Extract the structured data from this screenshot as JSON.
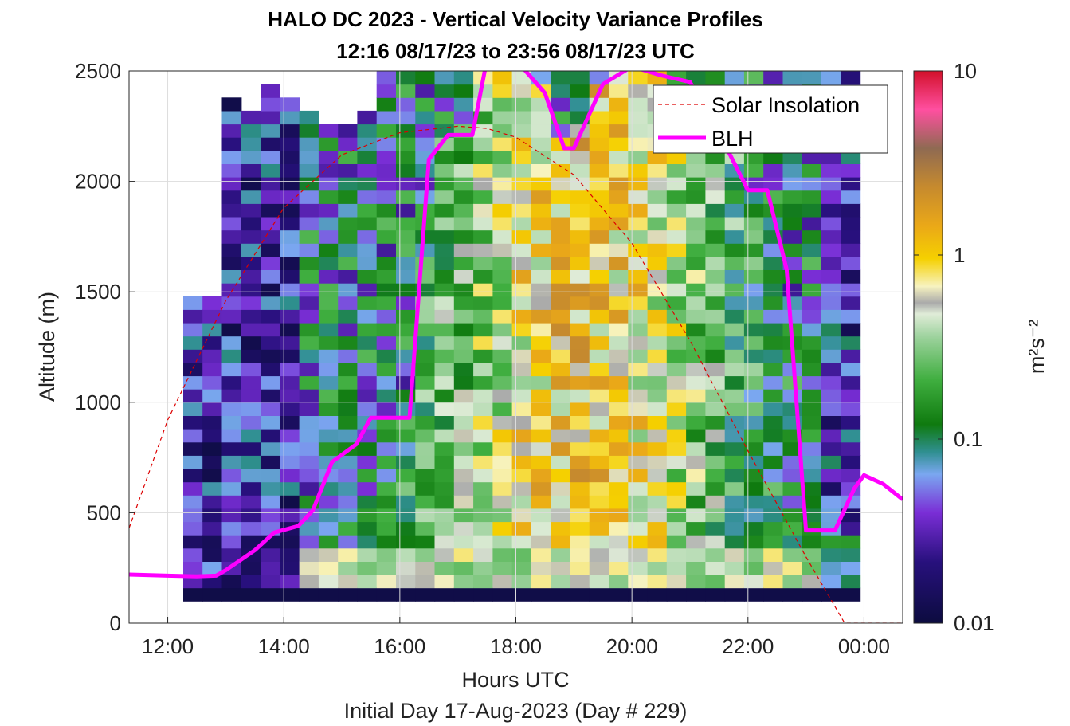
{
  "title_line1": "HALO DC 2023 - Vertical Velocity Variance Profiles",
  "title_line2": "12:16 08/17/23 to 23:56 08/17/23  UTC",
  "colorbar": {
    "label": "m²s⁻²",
    "ticks": [
      "10",
      "1",
      "0.1",
      "0.01"
    ],
    "scale": "log",
    "range": [
      0.01,
      10
    ]
  },
  "chart_data": {
    "type": "heatmap",
    "title": "HALO DC 2023 - Vertical Velocity Variance Profiles",
    "subtitle": "12:16 08/17/23 to 23:56 08/17/23  UTC",
    "xlabel": "Hours UTC",
    "ylabel": "Altitude (m)",
    "footer": "Initial Day 17-Aug-2023 (Day # 229)",
    "xlim": [
      "11:20",
      "00:40"
    ],
    "ylim": [
      0,
      2500
    ],
    "x_tick_labels": [
      "12:00",
      "14:00",
      "16:00",
      "18:00",
      "20:00",
      "22:00",
      "00:00"
    ],
    "y_tick_labels": [
      "0",
      "500",
      "1000",
      "1500",
      "2000",
      "2500"
    ],
    "grid": true,
    "legend_position": "top-right",
    "series": [
      {
        "name": "Solar Insolation",
        "style": "dashed",
        "color": "#dd0000",
        "x": [
          "11:20",
          "12:00",
          "13:00",
          "14:00",
          "15:00",
          "16:00",
          "17:00",
          "17:30",
          "18:00",
          "19:00",
          "20:00",
          "21:00",
          "22:00",
          "23:00",
          "23:40",
          "00:00",
          "00:40"
        ],
        "y": [
          430,
          920,
          1460,
          1880,
          2120,
          2220,
          2250,
          2240,
          2200,
          2030,
          1720,
          1280,
          780,
          300,
          0,
          0,
          0
        ]
      },
      {
        "name": "BLH",
        "style": "solid",
        "color": "#ff00ff",
        "x": [
          "11:20",
          "12:00",
          "12:30",
          "12:50",
          "13:00",
          "13:30",
          "13:50",
          "14:15",
          "14:30",
          "14:50",
          "15:15",
          "15:30",
          "16:00",
          "16:10",
          "16:30",
          "16:50",
          "17:15",
          "17:30",
          "18:00",
          "18:30",
          "18:50",
          "19:00",
          "19:30",
          "20:00",
          "20:30",
          "21:00",
          "21:30",
          "22:00",
          "22:20",
          "22:40",
          "23:00",
          "23:15",
          "23:30",
          "23:50",
          "00:00",
          "00:20",
          "00:40"
        ],
        "y": [
          220,
          215,
          212,
          215,
          240,
          330,
          410,
          440,
          510,
          730,
          810,
          930,
          930,
          930,
          2100,
          2210,
          2210,
          2550,
          2550,
          2400,
          2150,
          2150,
          2440,
          2520,
          2480,
          2450,
          2220,
          1960,
          1960,
          1600,
          420,
          420,
          420,
          610,
          670,
          630,
          560
        ]
      }
    ],
    "heatmap": {
      "x_start": "12:16",
      "x_end": "23:56",
      "time_step_minutes": 20,
      "altitude_step_m": 60,
      "value_units": "m^2 s^-2",
      "note": "Grid of vertical velocity variance, low (~0.01-0.03) before 14:30 and after 23:20, high (0.3-1.5) during 16:30-22:00 above the surface layer"
    }
  }
}
